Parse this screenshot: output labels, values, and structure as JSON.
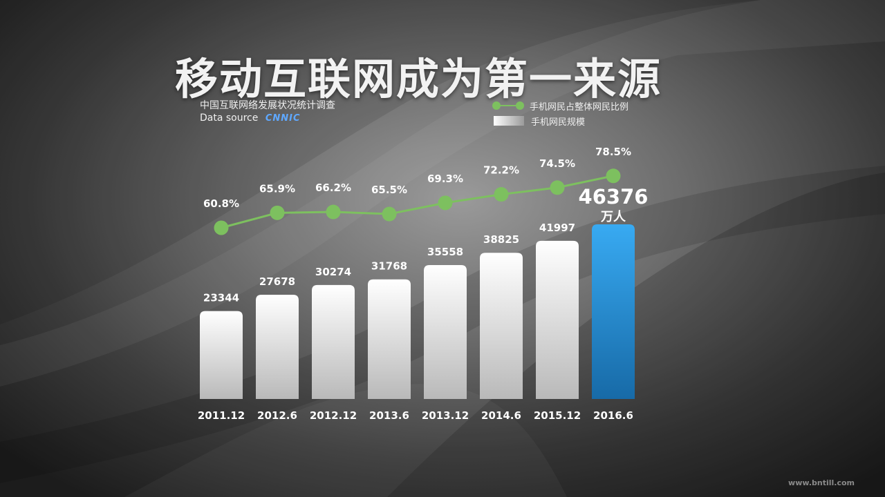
{
  "title": "移动互联网成为第一来源",
  "source": {
    "line1": "中国互联网络发展状况统计调查",
    "line2": "Data source",
    "brand": "CNNIC"
  },
  "legend": {
    "line_label": "手机网民占整体网民比例",
    "bar_label": "手机网民规模"
  },
  "watermark": "www.bntill.com",
  "chart_data": {
    "type": "bar",
    "categories": [
      "2011.12",
      "2012.6",
      "2012.12",
      "2013.6",
      "2013.12",
      "2014.6",
      "2015.12",
      "2016.6"
    ],
    "series": [
      {
        "name": "手机网民规模",
        "type": "bar",
        "values": [
          23344,
          27678,
          30274,
          31768,
          35558,
          38825,
          41997,
          46376
        ],
        "labels": [
          "23344",
          "27678",
          "30274",
          "31768",
          "35558",
          "38825",
          "41997",
          "46376"
        ]
      },
      {
        "name": "手机网民占整体网民比例",
        "type": "line",
        "values": [
          60.8,
          65.9,
          66.2,
          65.5,
          69.3,
          72.2,
          74.5,
          78.5
        ],
        "labels": [
          "60.8%",
          "65.9%",
          "66.2%",
          "65.5%",
          "69.3%",
          "72.2%",
          "74.5%",
          "78.5%"
        ]
      }
    ],
    "highlight_index": 7,
    "highlight_unit": "万人",
    "colors": {
      "bar_top": "#ffffff",
      "bar_bottom": "#b9b9b9",
      "highlight_top": "#38aaf2",
      "highlight_bottom": "#176aa7",
      "line": "#7dc05f"
    }
  }
}
